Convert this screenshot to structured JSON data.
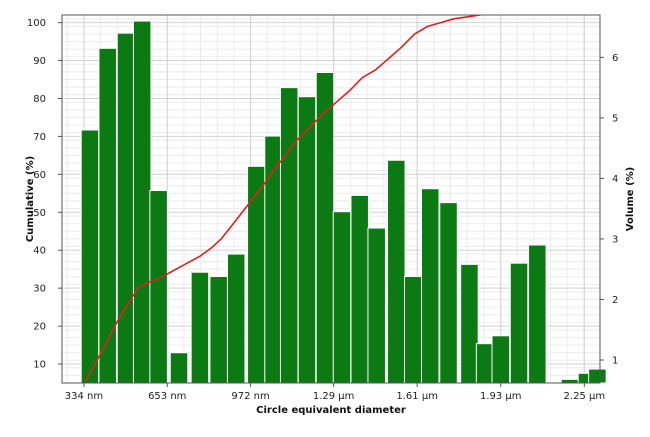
{
  "chart_data": {
    "type": "bar",
    "title": "",
    "xlabel": "Circle equivalent diameter",
    "ylabel_left": "Cumulative (%)",
    "ylabel_right": "Volume (%)",
    "x_tick_labels": [
      "334 nm",
      "653 nm",
      "972 nm",
      "1.29 µm",
      "1.61 µm",
      "1.93 µm",
      "2.25 µm"
    ],
    "x_tick_values_nm": [
      334,
      653,
      972,
      1290,
      1610,
      1930,
      2250
    ],
    "xlim_nm": [
      250,
      2310
    ],
    "left_ticks": [
      10,
      20,
      30,
      40,
      50,
      60,
      70,
      80,
      90,
      100
    ],
    "left_ylim": [
      5,
      102
    ],
    "right_ticks": [
      1,
      2,
      3,
      4,
      5,
      6
    ],
    "right_ylim": [
      0.62,
      6.7
    ],
    "grid": true,
    "bar_color": "#0b7a12",
    "bar_edge_color": "#ffffff",
    "line_color": "#e02020",
    "bar_width_nm": 67,
    "bars": {
      "name": "Volume (%)",
      "axis": "right",
      "x_nm": [
        357,
        425,
        495,
        557,
        620,
        698,
        778,
        850,
        917,
        994,
        1060,
        1120,
        1188,
        1257,
        1322,
        1390,
        1455,
        1530,
        1595,
        1660,
        1730,
        1810,
        1870,
        1930,
        2000,
        2070,
        2130,
        2195,
        2260,
        2300
      ],
      "values": [
        4.8,
        6.15,
        6.4,
        6.6,
        3.8,
        1.12,
        2.45,
        2.38,
        2.75,
        4.2,
        4.7,
        5.5,
        5.35,
        5.75,
        3.45,
        3.72,
        3.18,
        4.3,
        2.38,
        3.83,
        3.6,
        2.58,
        1.27,
        1.4,
        2.6,
        2.9,
        0.62,
        0.68,
        0.78,
        0.85
      ]
    },
    "cumulative": {
      "name": "Cumulative (%)",
      "axis": "left",
      "x_nm": [
        340,
        380,
        420,
        460,
        500,
        540,
        580,
        620,
        660,
        700,
        740,
        780,
        820,
        860,
        900,
        940,
        980,
        1020,
        1060,
        1100,
        1150,
        1200,
        1250,
        1300,
        1350,
        1400,
        1450,
        1500,
        1550,
        1600,
        1650,
        1700,
        1750,
        1800,
        1850,
        1900,
        1950,
        2000,
        2050,
        2100,
        2150,
        2200,
        2250
      ],
      "values": [
        5.5,
        10.5,
        15.5,
        21.0,
        25.5,
        30.0,
        31.5,
        32.5,
        34.0,
        35.5,
        37.0,
        38.5,
        40.5,
        43.0,
        46.5,
        50.0,
        53.5,
        57.0,
        61.0,
        64.5,
        69.0,
        72.5,
        76.0,
        79.0,
        82.0,
        85.5,
        87.5,
        90.5,
        93.5,
        97.0,
        99.0,
        100.0,
        101.0,
        101.5,
        102.0,
        103.0,
        104.0,
        104.5,
        105.0,
        105.5,
        106.0,
        106.5,
        107.0
      ]
    }
  }
}
